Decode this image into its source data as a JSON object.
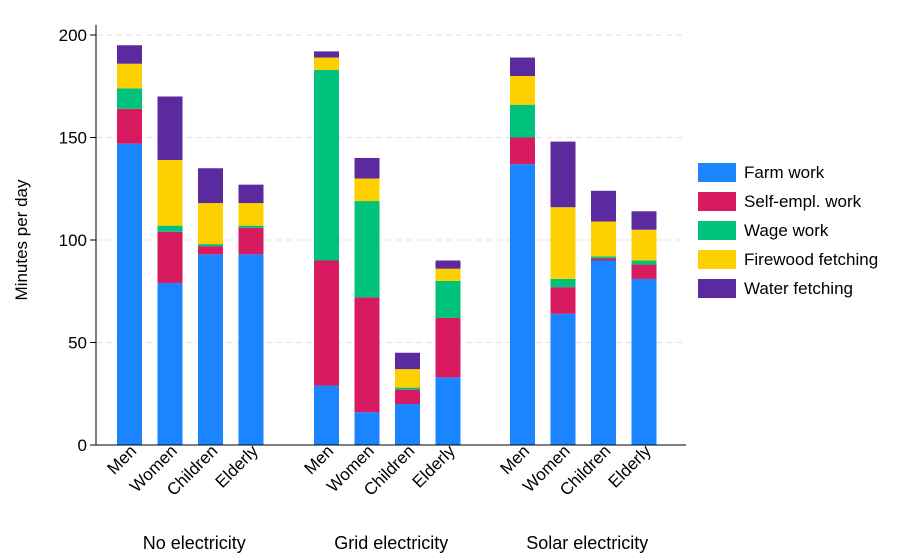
{
  "chart_data": {
    "type": "bar",
    "stacked": true,
    "ylabel": "Minutes per day",
    "ylim": [
      0,
      205
    ],
    "yticks": [
      0,
      50,
      100,
      150,
      200
    ],
    "grid": "horizontal dashed",
    "legend_position": "right",
    "groups": [
      {
        "label": "No electricity",
        "categories": [
          "Men",
          "Women",
          "Children",
          "Elderly"
        ]
      },
      {
        "label": "Grid electricity",
        "categories": [
          "Men",
          "Women",
          "Children",
          "Elderly"
        ]
      },
      {
        "label": "Solar electricity",
        "categories": [
          "Men",
          "Women",
          "Children",
          "Elderly"
        ]
      }
    ],
    "series": [
      {
        "name": "Farm work",
        "color": "#1a85ff",
        "values": [
          147,
          79,
          93,
          93,
          29,
          16,
          20,
          33,
          137,
          64,
          90,
          81
        ]
      },
      {
        "name": "Self-empl. work",
        "color": "#d81b60",
        "values": [
          17,
          25,
          4,
          13,
          61,
          56,
          7,
          29,
          13,
          13,
          1,
          7
        ]
      },
      {
        "name": "Wage work",
        "color": "#00c27a",
        "values": [
          10,
          3,
          1,
          1,
          93,
          47,
          1,
          18,
          16,
          4,
          1,
          2
        ]
      },
      {
        "name": "Firewood fetching",
        "color": "#ffd000",
        "values": [
          12,
          32,
          20,
          11,
          6,
          11,
          9,
          6,
          14,
          35,
          17,
          15
        ]
      },
      {
        "name": "Water fetching",
        "color": "#5b2a9e",
        "values": [
          9,
          31,
          17,
          9,
          3,
          10,
          8,
          4,
          9,
          32,
          15,
          9
        ]
      }
    ]
  }
}
